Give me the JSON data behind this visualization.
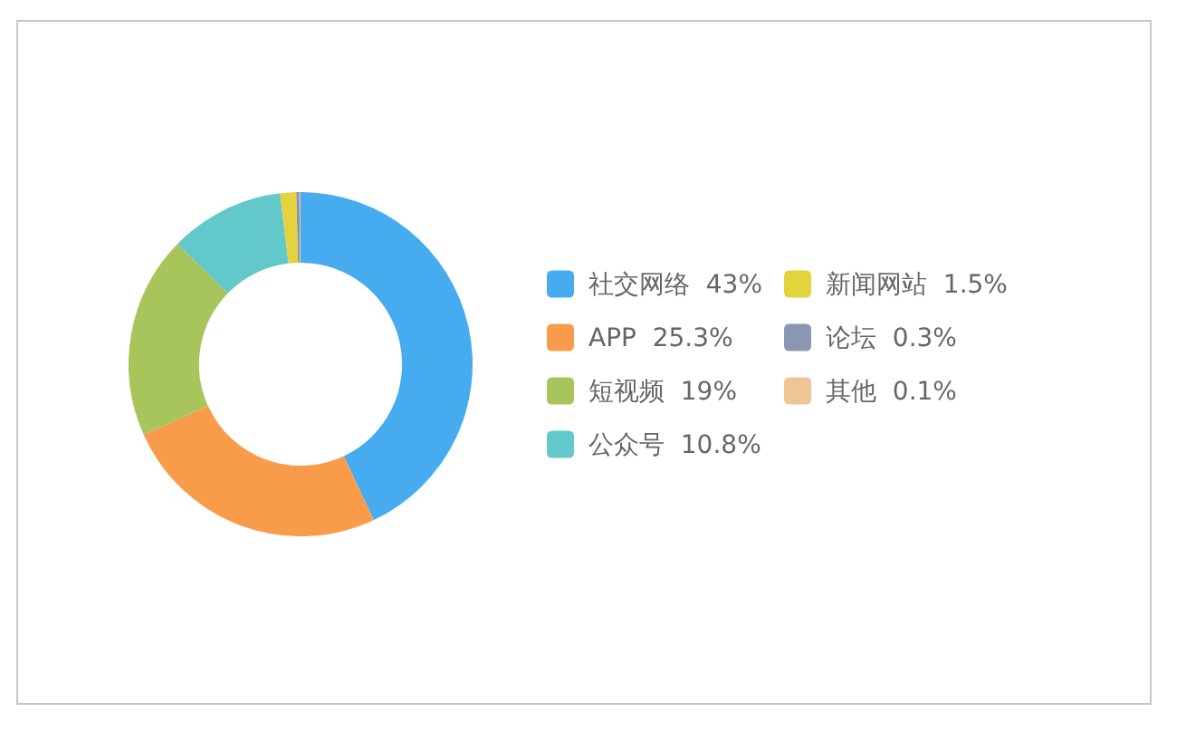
{
  "chart_data": {
    "type": "donut",
    "categories": [
      "社交网络",
      "APP",
      "短视频",
      "公众号",
      "新闻网站",
      "论坛",
      "其他"
    ],
    "values": [
      43,
      25.3,
      19,
      10.8,
      1.5,
      0.3,
      0.1
    ],
    "value_labels": [
      "43%",
      "25.3%",
      "19%",
      "10.8%",
      "1.5%",
      "0.3%",
      "0.1%"
    ],
    "colors": [
      "#46abef",
      "#f89b4b",
      "#a8c55c",
      "#63c8c9",
      "#e4d33c",
      "#8a97b3",
      "#f0c595"
    ],
    "legend": "right"
  }
}
